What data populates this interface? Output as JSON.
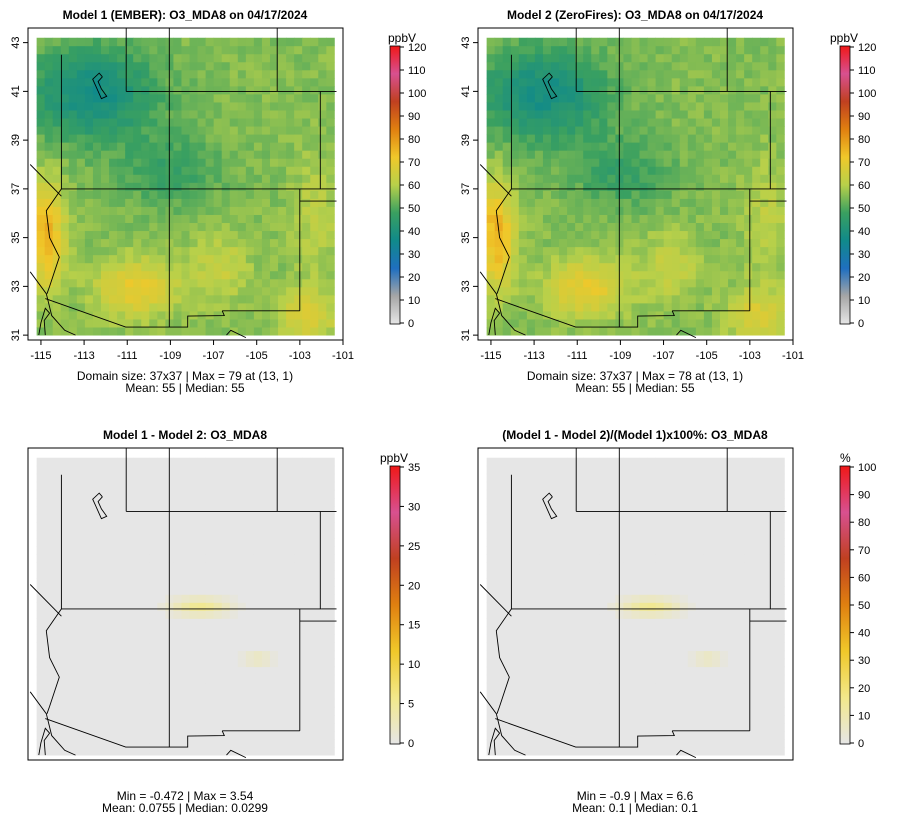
{
  "panels": [
    {
      "title": "Model 1 (EMBER): O3_MDA8 on 04/17/2024",
      "unit": "ppbV",
      "type": "value",
      "scale_ticks": [
        0,
        10,
        20,
        30,
        40,
        50,
        60,
        70,
        80,
        90,
        100,
        110,
        120
      ],
      "xticks": [
        "-115",
        "-113",
        "-111",
        "-109",
        "-107",
        "-105",
        "-103",
        "-101"
      ],
      "yticks": [
        "31",
        "33",
        "35",
        "37",
        "39",
        "41",
        "43"
      ],
      "stats_line1": "Domain size: 37x37 | Max = 79 at (13, 1)",
      "stats_line2": "Mean: 55 |  Median: 55"
    },
    {
      "title": "Model 2 (ZeroFires): O3_MDA8 on 04/17/2024",
      "unit": "ppbV",
      "type": "value",
      "scale_ticks": [
        0,
        10,
        20,
        30,
        40,
        50,
        60,
        70,
        80,
        90,
        100,
        110,
        120
      ],
      "xticks": [
        "-115",
        "-113",
        "-111",
        "-109",
        "-107",
        "-105",
        "-103",
        "-101"
      ],
      "yticks": [
        "31",
        "33",
        "35",
        "37",
        "39",
        "41",
        "43"
      ],
      "stats_line1": "Domain size: 37x37 | Max = 78 at (13, 1)",
      "stats_line2": "Mean: 55 |  Median: 55"
    },
    {
      "title": "Model 1 - Model 2: O3_MDA8",
      "unit": "ppbV",
      "type": "diff",
      "scale_ticks": [
        0,
        5,
        10,
        15,
        20,
        25,
        30,
        35
      ],
      "stats_line1": "Min = -0.472 | Max = 3.54",
      "stats_line2": "Mean: 0.0755 |  Median: 0.0299"
    },
    {
      "title": "(Model 1 - Model 2)/(Model 1)x100%: O3_MDA8",
      "unit": "%",
      "type": "diff",
      "scale_ticks": [
        0,
        10,
        20,
        30,
        40,
        50,
        60,
        70,
        80,
        90,
        100
      ],
      "stats_line1": "Min = -0.9 | Max = 6.6",
      "stats_line2": "Mean: 0.1 |  Median: 0.1"
    }
  ],
  "colors": {
    "value_ramp": [
      "#e6e6e6",
      "#a6a6a6",
      "#1f6fc0",
      "#108a8a",
      "#3aa060",
      "#b8d04a",
      "#f0c82a",
      "#e08010",
      "#c04020",
      "#d85090",
      "#f01818"
    ],
    "diff_ramp": [
      "#e6e6e6",
      "#f2e88a",
      "#f0c82a",
      "#e08010",
      "#c04020",
      "#d85090",
      "#f01818"
    ],
    "background_grid": "#e6e6e6",
    "boundary": "#000000"
  }
}
